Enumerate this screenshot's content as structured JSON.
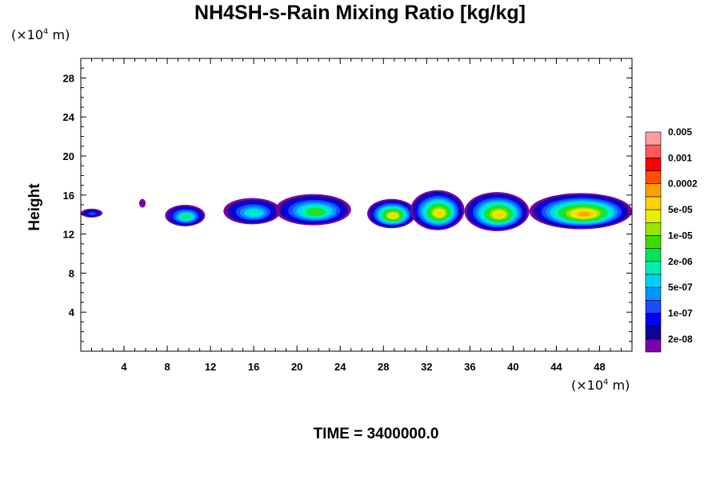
{
  "title": "NH4SH-s-Rain Mixing Ratio [kg/kg]",
  "y_unit": {
    "prefix": "(×10",
    "exp": "4",
    "suffix": " m)"
  },
  "x_unit": {
    "prefix": "(×10",
    "exp": "4",
    "suffix": " m)"
  },
  "time_label": "TIME = 3400000.0",
  "chart_data": {
    "type": "heatmap",
    "title": "NH4SH-s-Rain Mixing Ratio [kg/kg]",
    "ylabel": "Height",
    "xlabel": "",
    "xlim": [
      0,
      51
    ],
    "ylim": [
      0,
      30
    ],
    "x_ticks": [
      4,
      8,
      12,
      16,
      20,
      24,
      28,
      32,
      36,
      40,
      44,
      48
    ],
    "y_ticks": [
      4,
      8,
      12,
      16,
      20,
      24,
      28
    ],
    "colorbar": {
      "colors": [
        "#7a00a8",
        "#10009c",
        "#0000ff",
        "#1a4bff",
        "#0096ff",
        "#00d2ff",
        "#00f0b4",
        "#00e65a",
        "#3cdc00",
        "#96e600",
        "#e6f000",
        "#ffd200",
        "#ffa000",
        "#ff5000",
        "#ff0000",
        "#ff5a5a",
        "#ff9ca0"
      ],
      "labels": [
        "2e-08",
        "1e-07",
        "5e-07",
        "2e-06",
        "1e-05",
        "5e-05",
        "0.0002",
        "0.001",
        "0.005"
      ]
    },
    "features": [
      {
        "x0": 0.0,
        "x1": 2.0,
        "y0": 13.7,
        "y1": 14.6,
        "max_level": 3
      },
      {
        "x0": 5.4,
        "x1": 6.0,
        "y0": 14.7,
        "y1": 15.6,
        "max_level": 0
      },
      {
        "x0": 7.8,
        "x1": 11.5,
        "y0": 12.8,
        "y1": 15.0,
        "max_level": 7
      },
      {
        "x0": 13.2,
        "x1": 18.5,
        "y0": 13.0,
        "y1": 15.7,
        "max_level": 6
      },
      {
        "x0": 18.0,
        "x1": 25.0,
        "y0": 12.9,
        "y1": 16.1,
        "max_level": 8
      },
      {
        "x0": 26.5,
        "x1": 31.0,
        "y0": 12.6,
        "y1": 15.6,
        "max_level": 11
      },
      {
        "x0": 30.5,
        "x1": 35.5,
        "y0": 12.4,
        "y1": 16.5,
        "max_level": 11
      },
      {
        "x0": 35.5,
        "x1": 41.5,
        "y0": 12.3,
        "y1": 16.3,
        "max_level": 11
      },
      {
        "x0": 41.5,
        "x1": 51.0,
        "y0": 12.5,
        "y1": 16.2,
        "max_level": 12
      }
    ]
  }
}
